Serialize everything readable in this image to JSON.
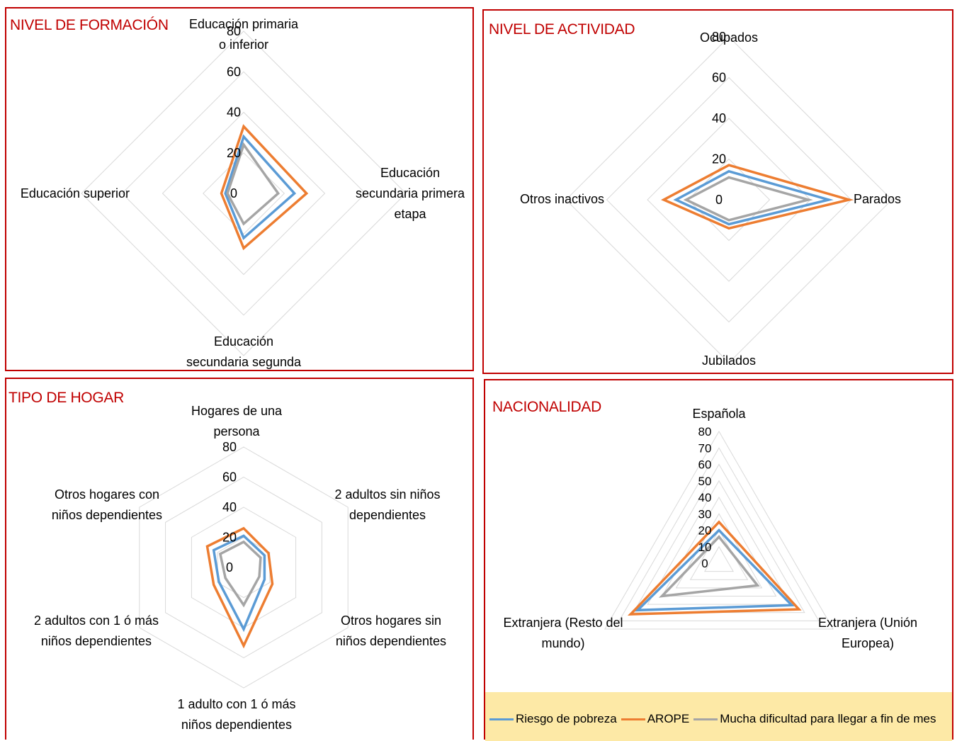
{
  "colors": {
    "riesgo": "#5b9bd5",
    "arope": "#ed7d31",
    "dificultad": "#a5a5a5",
    "grid": "#d9d9d9",
    "title": "#c00000"
  },
  "legend": [
    {
      "key": "riesgo",
      "label": "Riesgo de pobreza"
    },
    {
      "key": "arope",
      "label": "AROPE"
    },
    {
      "key": "dificultad",
      "label": "Mucha dificultad para llegar a fin de mes"
    }
  ],
  "chart_data": [
    {
      "type": "radar",
      "title": "NIVEL DE FORMACIÓN",
      "categories": [
        [
          "Educación primaria",
          "o inferior"
        ],
        [
          "Educación",
          "secundaria primera",
          "etapa"
        ],
        [
          "Educación",
          "secundaria segunda"
        ],
        [
          "Educación superior"
        ]
      ],
      "ticks": [
        "0",
        "20",
        "40",
        "60",
        "80"
      ],
      "rmax": 80,
      "rings": 4,
      "series": [
        {
          "key": "riesgo",
          "name": "Riesgo de pobreza",
          "values": [
            28,
            25,
            22,
            9
          ]
        },
        {
          "key": "arope",
          "name": "AROPE",
          "values": [
            33,
            31,
            27,
            11
          ]
        },
        {
          "key": "dificultad",
          "name": "Mucha dificultad para llegar a fin de mes",
          "values": [
            24,
            17,
            15,
            8
          ]
        }
      ]
    },
    {
      "type": "radar",
      "title": "NIVEL DE ACTIVIDAD",
      "categories": [
        [
          "Ocupados"
        ],
        [
          "Parados"
        ],
        [
          "Jubilados"
        ],
        [
          "Otros inactivos"
        ]
      ],
      "ticks": [
        "0",
        "20",
        "40",
        "60",
        "80"
      ],
      "rmax": 80,
      "rings": 4,
      "series": [
        {
          "key": "riesgo",
          "name": "Riesgo de pobreza",
          "values": [
            14,
            49,
            12,
            26
          ]
        },
        {
          "key": "arope",
          "name": "AROPE",
          "values": [
            17,
            59,
            14,
            32
          ]
        },
        {
          "key": "dificultad",
          "name": "Mucha dificultad para llegar a fin de mes",
          "values": [
            11,
            39,
            10,
            21
          ]
        }
      ]
    },
    {
      "type": "radar",
      "title": "TIPO DE HOGAR",
      "categories": [
        [
          "Hogares de una",
          "persona"
        ],
        [
          "2 adultos sin niños",
          "dependientes"
        ],
        [
          "Otros hogares sin",
          "niños dependientes"
        ],
        [
          "1 adulto con 1 ó más",
          "niños dependientes"
        ],
        [
          "2 adultos con 1 ó más",
          "niños dependientes"
        ],
        [
          "Otros hogares con",
          "niños dependientes"
        ]
      ],
      "ticks": [
        "0",
        "20",
        "40",
        "60",
        "80"
      ],
      "rmax": 80,
      "rings": 4,
      "series": [
        {
          "key": "riesgo",
          "name": "Riesgo de pobreza",
          "values": [
            21,
            16,
            16,
            41,
            19,
            23
          ]
        },
        {
          "key": "arope",
          "name": "AROPE",
          "values": [
            26,
            19,
            22,
            52,
            23,
            28
          ]
        },
        {
          "key": "dificultad",
          "name": "Mucha dificultad para llegar a fin de mes",
          "values": [
            17,
            13,
            12,
            25,
            14,
            18
          ]
        }
      ]
    },
    {
      "type": "radar",
      "title": "NACIONALIDAD",
      "categories": [
        [
          "Española"
        ],
        [
          "Extranjera (Unión",
          "Europea)"
        ],
        [
          "Extranjera (Resto del",
          "mundo)"
        ]
      ],
      "ticks": [
        "0",
        "10",
        "20",
        "30",
        "40",
        "50",
        "60",
        "70",
        "80"
      ],
      "rmax": 80,
      "rings": 8,
      "series": [
        {
          "key": "riesgo",
          "name": "Riesgo de pobreza",
          "values": [
            20,
            51,
            57
          ]
        },
        {
          "key": "arope",
          "name": "AROPE",
          "values": [
            25,
            56,
            62
          ]
        },
        {
          "key": "dificultad",
          "name": "Mucha dificultad para llegar a fin de mes",
          "values": [
            16,
            27,
            40
          ]
        }
      ]
    }
  ]
}
